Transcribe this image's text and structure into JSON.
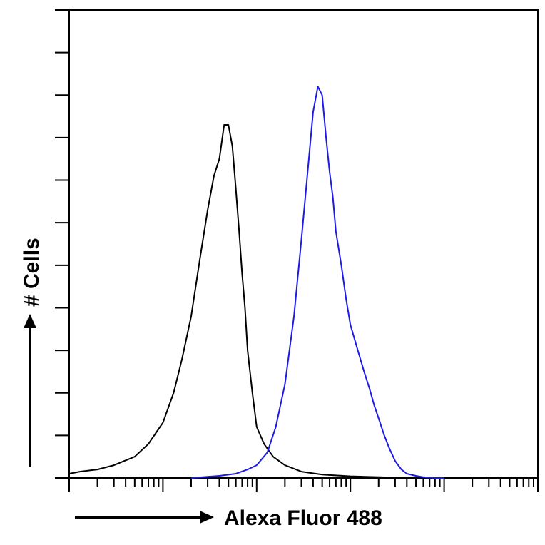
{
  "chart_data": {
    "type": "line",
    "title": "",
    "xlabel": "Alexa Fluor 488",
    "ylabel": "# Cells",
    "x_scale": "log",
    "xlim": [
      1,
      100000
    ],
    "ylim": [
      0,
      110
    ],
    "grid": false,
    "legend": "none",
    "series": [
      {
        "color": "#000000",
        "x": [
          1,
          1.3,
          2,
          3,
          5,
          7,
          10,
          13,
          16,
          20,
          25,
          30,
          35,
          40,
          45,
          50,
          55,
          60,
          65,
          70,
          75,
          80,
          90,
          100,
          120,
          150,
          200,
          300,
          500,
          1000,
          2000,
          4000
        ],
        "y": [
          1,
          1.5,
          2,
          3,
          5,
          8,
          13,
          20,
          28,
          38,
          52,
          63,
          71,
          75,
          83,
          83,
          78,
          68,
          58,
          48,
          40,
          30,
          20,
          12,
          8,
          5,
          3,
          1.5,
          0.8,
          0.4,
          0.2,
          0
        ]
      },
      {
        "color": "#1c1ce6",
        "x": [
          20,
          40,
          60,
          80,
          100,
          130,
          160,
          200,
          250,
          300,
          350,
          400,
          450,
          500,
          550,
          600,
          650,
          700,
          800,
          900,
          1000,
          1200,
          1400,
          1600,
          1800,
          2000,
          2300,
          2600,
          3000,
          3500,
          4000,
          5000,
          6000,
          7000,
          8000,
          9000,
          10000
        ],
        "y": [
          0,
          0.5,
          1,
          2,
          3,
          6,
          12,
          22,
          38,
          56,
          72,
          86,
          92,
          90,
          80,
          72,
          66,
          58,
          50,
          42,
          36,
          30,
          25,
          21,
          17,
          14,
          10,
          7,
          4,
          2,
          1,
          0.5,
          0.2,
          0.1,
          0,
          0,
          0
        ]
      }
    ]
  }
}
